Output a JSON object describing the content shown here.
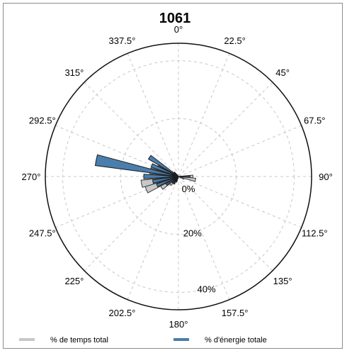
{
  "chart_data": {
    "type": "polar-bar",
    "title": "1061",
    "direction_labels": [
      "0°",
      "22.5°",
      "45°",
      "67.5°",
      "90°",
      "112.5°",
      "135°",
      "157.5°",
      "180°",
      "202.5°",
      "225°",
      "247.5°",
      "270°",
      "292.5°",
      "315°",
      "337.5°"
    ],
    "radial_ticks": [
      {
        "value": 0,
        "label": "0%"
      },
      {
        "value": 20,
        "label": "20%"
      },
      {
        "value": 40,
        "label": "40%"
      }
    ],
    "r_max": 46,
    "grid": true,
    "legend_position": "bottom",
    "series": [
      {
        "name": "% de temps total",
        "color": "#c8c8c8",
        "edge": "#3a3a3a",
        "bars": [
          {
            "direction": 90,
            "value": 5
          },
          {
            "direction": 101.25,
            "value": 6
          },
          {
            "direction": 112.5,
            "value": 2
          },
          {
            "direction": 202.5,
            "value": 2
          },
          {
            "direction": 213.75,
            "value": 3
          },
          {
            "direction": 225,
            "value": 4
          },
          {
            "direction": 236.25,
            "value": 7
          },
          {
            "direction": 247.5,
            "value": 12
          },
          {
            "direction": 258.75,
            "value": 13
          },
          {
            "direction": 270,
            "value": 6
          },
          {
            "direction": 281.25,
            "value": 10
          },
          {
            "direction": 292.5,
            "value": 8
          },
          {
            "direction": 303.75,
            "value": 2
          },
          {
            "direction": 315,
            "value": 1
          }
        ]
      },
      {
        "name": "% d'énergie totale",
        "color": "#4a7ead",
        "edge": "#1d1d1d",
        "bars": [
          {
            "direction": 90,
            "value": 4
          },
          {
            "direction": 101.25,
            "value": 1
          },
          {
            "direction": 202.5,
            "value": 2
          },
          {
            "direction": 213.75,
            "value": 3
          },
          {
            "direction": 225,
            "value": 3
          },
          {
            "direction": 236.25,
            "value": 5
          },
          {
            "direction": 247.5,
            "value": 8
          },
          {
            "direction": 258.75,
            "value": 9
          },
          {
            "direction": 270,
            "value": 12
          },
          {
            "direction": 281.25,
            "value": 29
          },
          {
            "direction": 292.5,
            "value": 10
          },
          {
            "direction": 303.75,
            "value": 12
          },
          {
            "direction": 315,
            "value": 2
          }
        ]
      }
    ]
  }
}
